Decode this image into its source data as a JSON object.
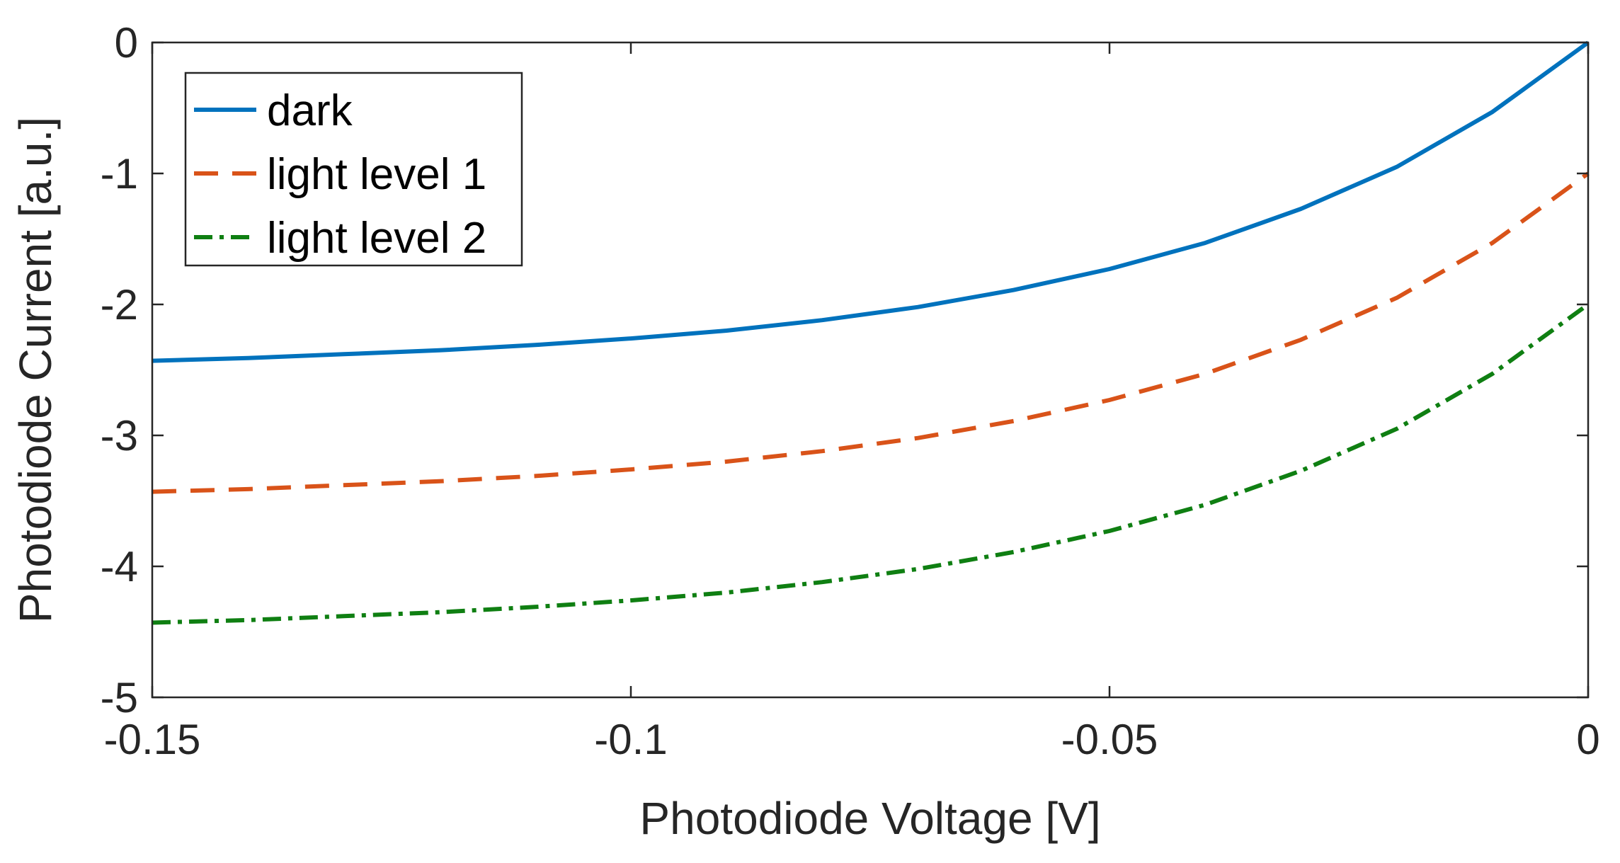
{
  "chart_data": {
    "type": "line",
    "title": "",
    "xlabel": "Photodiode Voltage [V]",
    "ylabel": "Photodiode Current [a.u.]",
    "xlim": [
      -0.15,
      0
    ],
    "ylim": [
      -5,
      0
    ],
    "xticks": [
      -0.15,
      -0.1,
      -0.05,
      0
    ],
    "xtick_labels": [
      "-0.15",
      "-0.1",
      "-0.05",
      "0"
    ],
    "yticks": [
      -5,
      -4,
      -3,
      -2,
      -1,
      0
    ],
    "ytick_labels": [
      "-5",
      "-4",
      "-3",
      "-2",
      "-1",
      "0"
    ],
    "grid": false,
    "legend_position": "top-left",
    "x": [
      -0.15,
      -0.14,
      -0.13,
      -0.12,
      -0.11,
      -0.1,
      -0.09,
      -0.08,
      -0.07,
      -0.06,
      -0.05,
      -0.04,
      -0.03,
      -0.02,
      -0.01,
      0
    ],
    "series": [
      {
        "name": "dark",
        "color": "#0072BD",
        "style": "solid",
        "values": [
          -2.43,
          -2.41,
          -2.38,
          -2.35,
          -2.31,
          -2.26,
          -2.2,
          -2.12,
          -2.02,
          -1.89,
          -1.73,
          -1.53,
          -1.27,
          -0.95,
          -0.53,
          0
        ]
      },
      {
        "name": "light level 1",
        "color": "#D95319",
        "style": "dashed",
        "values": [
          -3.43,
          -3.41,
          -3.38,
          -3.35,
          -3.31,
          -3.26,
          -3.2,
          -3.12,
          -3.02,
          -2.89,
          -2.73,
          -2.53,
          -2.27,
          -1.95,
          -1.53,
          -1
        ]
      },
      {
        "name": "light level 2",
        "color": "#0F7F12",
        "style": "dashdot",
        "values": [
          -4.43,
          -4.41,
          -4.38,
          -4.35,
          -4.31,
          -4.26,
          -4.2,
          -4.12,
          -4.02,
          -3.89,
          -3.73,
          -3.53,
          -3.27,
          -2.95,
          -2.53,
          -2
        ]
      }
    ]
  }
}
